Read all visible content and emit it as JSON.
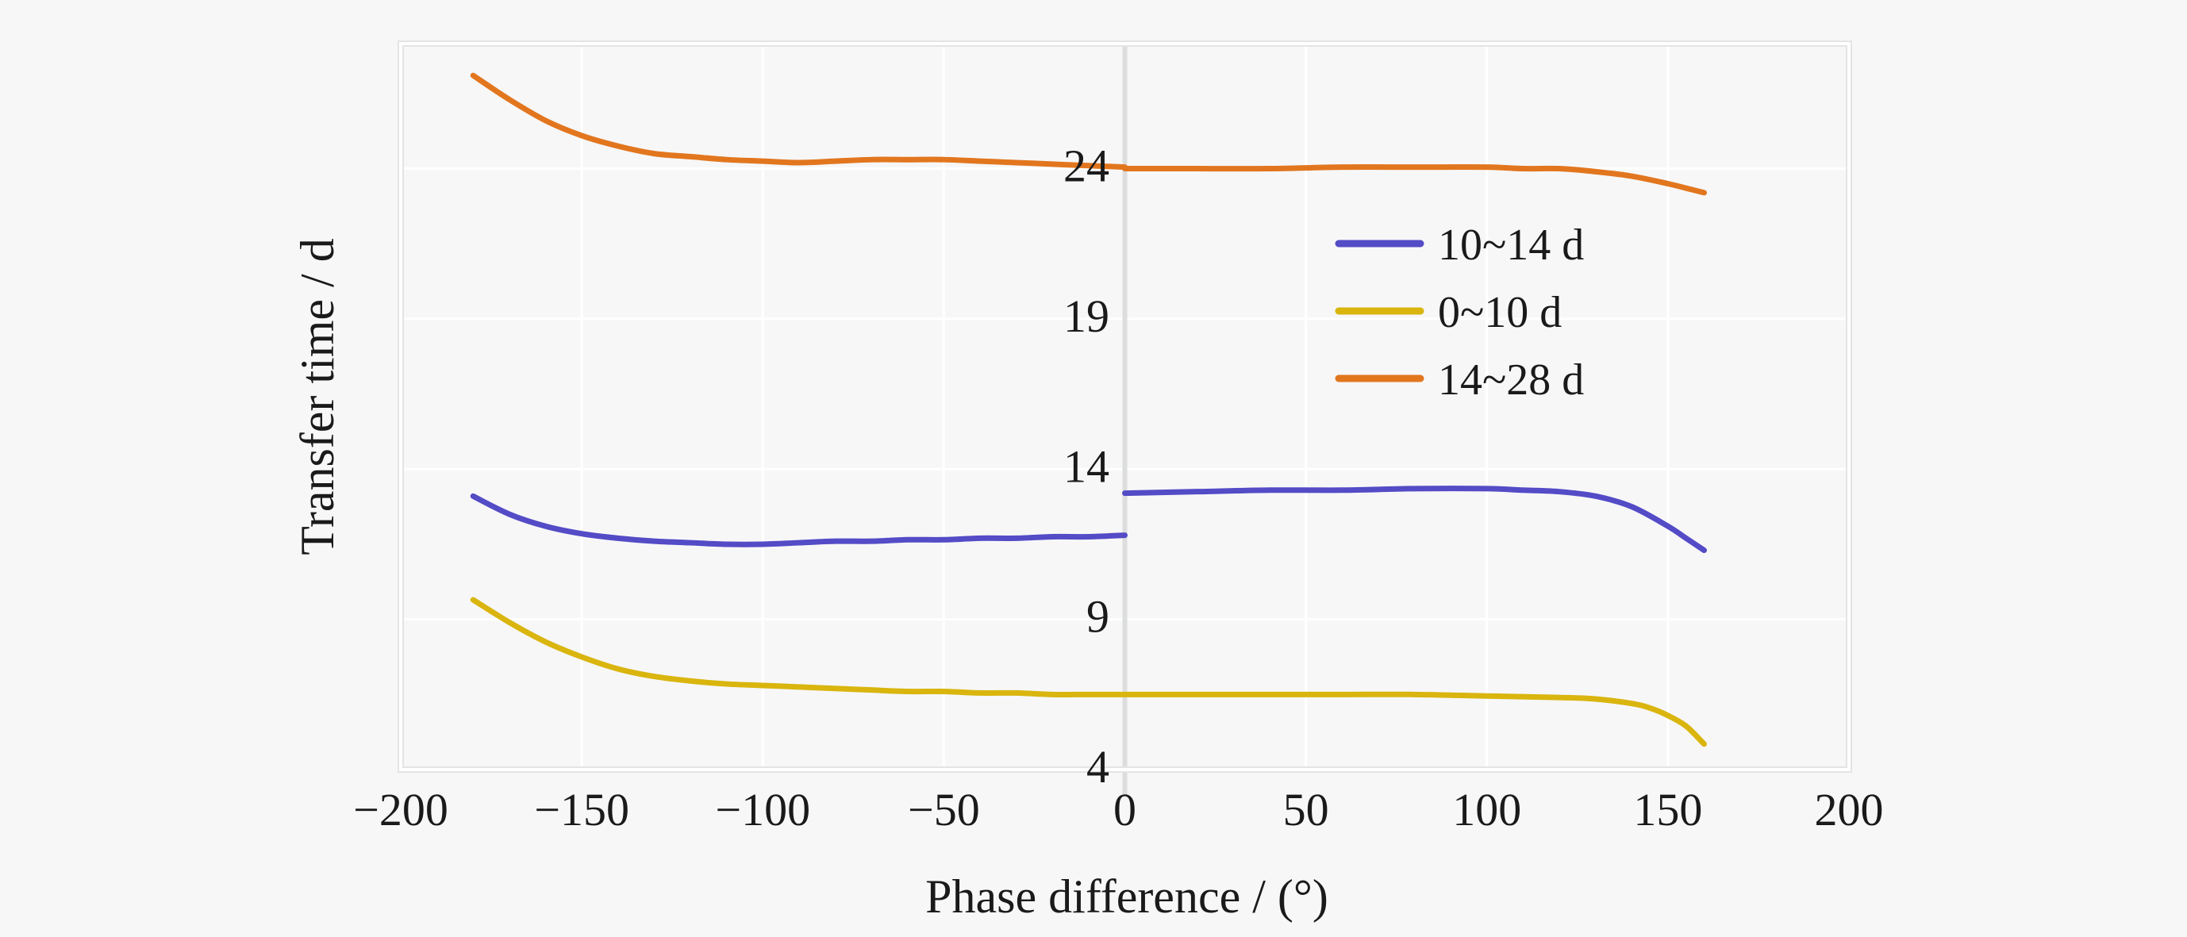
{
  "chart": {
    "xlabel": "Phase difference / (°)",
    "ylabel": "Transfer time / d",
    "x_tick_labels": [
      "−200",
      "−150",
      "−100",
      "−50",
      "0",
      "50",
      "100",
      "150",
      "200"
    ],
    "y_tick_labels": [
      "4",
      "9",
      "14",
      "19",
      "24"
    ],
    "background_color": "#f7f7f8",
    "gridline_color": "#ffffff",
    "frame_color": "#e4e4e5",
    "zero_axis_color": "#dcdddd",
    "text_color": "#1a1a1a"
  },
  "legend": {
    "entries": [
      {
        "label": "10~14 d",
        "color": "#544bc6"
      },
      {
        "label": "0~10 d",
        "color": "#d9b50e"
      },
      {
        "label": "14~28 d",
        "color": "#e2761e"
      }
    ]
  },
  "chart_data": {
    "type": "line",
    "title": "",
    "xlabel": "Phase difference / (°)",
    "ylabel": "Transfer time / d",
    "xlim": [
      -200,
      200
    ],
    "ylim": [
      4,
      28.16
    ],
    "x_ticks": [
      -200,
      -150,
      -100,
      -50,
      0,
      50,
      100,
      150,
      200
    ],
    "y_ticks": [
      4,
      9,
      14,
      19,
      24
    ],
    "grid": true,
    "legend_position": "upper-right-inside",
    "series": [
      {
        "name": "10~14 d",
        "color": "#544bc6",
        "segments": [
          [
            [
              -180,
              13.1
            ],
            [
              -170,
              12.5
            ],
            [
              -160,
              12.1
            ],
            [
              -150,
              11.85
            ],
            [
              -140,
              11.7
            ],
            [
              -130,
              11.6
            ],
            [
              -120,
              11.55
            ],
            [
              -110,
              11.5
            ],
            [
              -100,
              11.5
            ],
            [
              -90,
              11.55
            ],
            [
              -80,
              11.6
            ],
            [
              -70,
              11.6
            ],
            [
              -60,
              11.65
            ],
            [
              -50,
              11.65
            ],
            [
              -40,
              11.7
            ],
            [
              -30,
              11.7
            ],
            [
              -20,
              11.75
            ],
            [
              -10,
              11.75
            ],
            [
              0,
              11.8
            ]
          ],
          [
            [
              0,
              13.2
            ],
            [
              20,
              13.25
            ],
            [
              40,
              13.3
            ],
            [
              60,
              13.3
            ],
            [
              80,
              13.35
            ],
            [
              100,
              13.35
            ],
            [
              110,
              13.3
            ],
            [
              120,
              13.25
            ],
            [
              130,
              13.1
            ],
            [
              140,
              12.75
            ],
            [
              150,
              12.1
            ],
            [
              155,
              11.7
            ],
            [
              160,
              11.3
            ]
          ]
        ]
      },
      {
        "name": "0~10 d",
        "color": "#d9b50e",
        "segments": [
          [
            [
              -180,
              9.65
            ],
            [
              -170,
              8.9
            ],
            [
              -160,
              8.25
            ],
            [
              -150,
              7.75
            ],
            [
              -140,
              7.35
            ],
            [
              -130,
              7.1
            ],
            [
              -120,
              6.95
            ],
            [
              -110,
              6.85
            ],
            [
              -100,
              6.8
            ],
            [
              -90,
              6.75
            ],
            [
              -80,
              6.7
            ],
            [
              -70,
              6.65
            ],
            [
              -60,
              6.6
            ],
            [
              -50,
              6.6
            ],
            [
              -40,
              6.55
            ],
            [
              -30,
              6.55
            ],
            [
              -20,
              6.5
            ],
            [
              -10,
              6.5
            ],
            [
              0,
              6.5
            ],
            [
              20,
              6.5
            ],
            [
              40,
              6.5
            ],
            [
              60,
              6.5
            ],
            [
              80,
              6.5
            ],
            [
              100,
              6.45
            ],
            [
              120,
              6.4
            ],
            [
              130,
              6.35
            ],
            [
              140,
              6.2
            ],
            [
              145,
              6.05
            ],
            [
              150,
              5.8
            ],
            [
              155,
              5.45
            ],
            [
              160,
              4.85
            ]
          ]
        ]
      },
      {
        "name": "14~28 d",
        "color": "#e2761e",
        "segments": [
          [
            [
              -180,
              27.1
            ],
            [
              -170,
              26.3
            ],
            [
              -160,
              25.6
            ],
            [
              -150,
              25.1
            ],
            [
              -140,
              24.75
            ],
            [
              -130,
              24.5
            ],
            [
              -120,
              24.4
            ],
            [
              -110,
              24.3
            ],
            [
              -100,
              24.25
            ],
            [
              -90,
              24.2
            ],
            [
              -80,
              24.25
            ],
            [
              -70,
              24.3
            ],
            [
              -60,
              24.3
            ],
            [
              -50,
              24.3
            ],
            [
              -40,
              24.25
            ],
            [
              -30,
              24.2
            ],
            [
              -20,
              24.15
            ],
            [
              -10,
              24.1
            ],
            [
              0,
              24.05
            ]
          ],
          [
            [
              0,
              24.0
            ],
            [
              20,
              24.0
            ],
            [
              40,
              24.0
            ],
            [
              60,
              24.05
            ],
            [
              80,
              24.05
            ],
            [
              100,
              24.05
            ],
            [
              110,
              24.0
            ],
            [
              120,
              24.0
            ],
            [
              130,
              23.9
            ],
            [
              140,
              23.75
            ],
            [
              150,
              23.5
            ],
            [
              155,
              23.35
            ],
            [
              160,
              23.2
            ]
          ]
        ]
      }
    ]
  }
}
